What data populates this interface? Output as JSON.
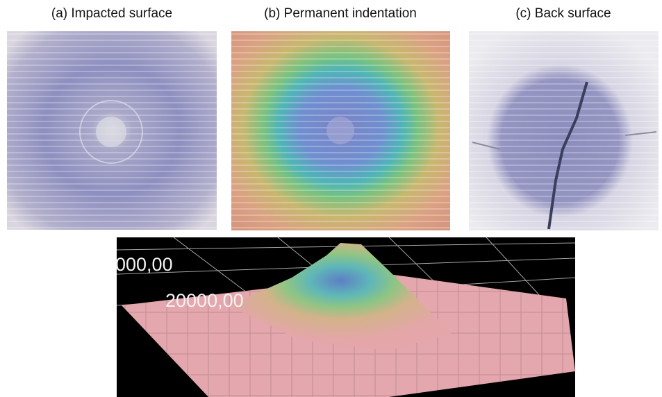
{
  "panels": [
    {
      "label": "(a) Impacted surface"
    },
    {
      "label": "(b) Permanent indentation"
    },
    {
      "label": "(c) Back surface"
    }
  ],
  "plot_3d": {
    "axis_labels": [
      "000,00",
      "20000,00"
    ]
  }
}
